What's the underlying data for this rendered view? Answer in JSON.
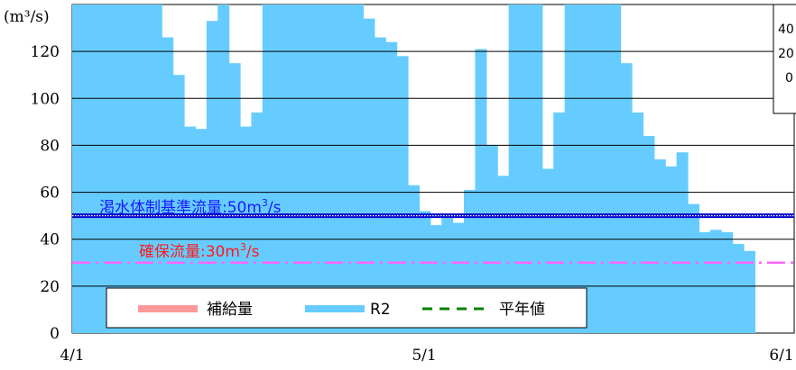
{
  "chart_data": {
    "type": "bar",
    "unit_label": "(m³/s)",
    "ylim": [
      0,
      140
    ],
    "y_ticks": [
      "0",
      "20",
      "40",
      "60",
      "80",
      "100",
      "120"
    ],
    "x_ticks": [
      "4/1",
      "5/1",
      "6/1"
    ],
    "grid": true,
    "series": [
      {
        "name": "R2",
        "color": "#66ccff",
        "values": [
          140,
          140,
          140,
          140,
          140,
          140,
          140,
          140,
          126,
          110,
          88,
          87,
          133,
          140,
          115,
          88,
          94,
          140,
          140,
          140,
          140,
          140,
          140,
          140,
          140,
          140,
          134,
          126,
          124,
          118,
          63,
          52,
          46,
          49,
          47,
          61,
          121,
          80,
          67,
          140,
          140,
          140,
          70,
          94,
          140,
          140,
          140,
          140,
          140,
          115,
          94,
          84,
          74,
          71,
          77,
          55,
          43,
          44,
          43,
          38,
          35
        ]
      }
    ],
    "reference_lines": [
      {
        "label_prefix": "渇水体制基準流量",
        "label_value": ":50m",
        "label_sup": "3",
        "label_suffix": "/s",
        "value": 50,
        "color": "#0000cc"
      },
      {
        "label_prefix": "確保流量",
        "label_value": ":30m",
        "label_sup": "3",
        "label_suffix": "/s",
        "value": 30,
        "color": "#ff66ff"
      }
    ],
    "legend": {
      "placement": "bottom-left",
      "items": [
        {
          "label": "補給量",
          "color": "#ff9999",
          "style": "bar"
        },
        {
          "label": "R2",
          "color": "#66ccff",
          "style": "bar"
        },
        {
          "label": "平年値",
          "color": "#008000",
          "style": "dashed"
        }
      ]
    },
    "inset": {
      "y_ticks": [
        "40",
        "20",
        "0"
      ]
    }
  }
}
